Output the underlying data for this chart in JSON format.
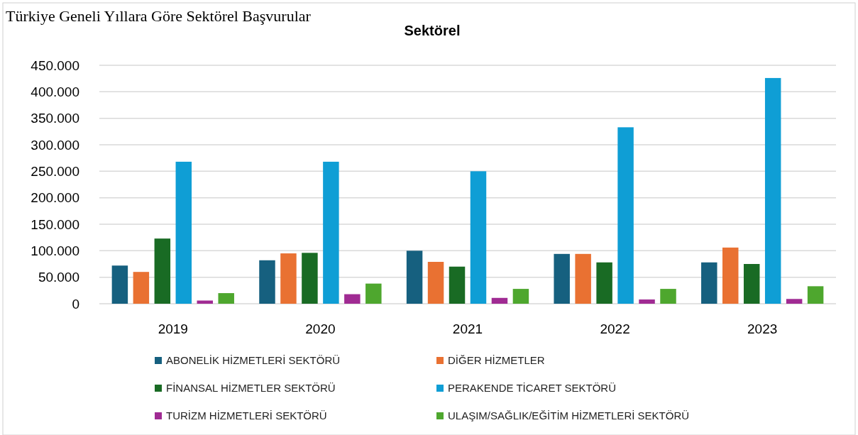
{
  "chart_data": {
    "type": "bar",
    "title": "Türkiye Geneli Yıllara Göre Sektörel Başvurular",
    "subtitle": "Sektörel",
    "categories": [
      "2019",
      "2020",
      "2021",
      "2022",
      "2023"
    ],
    "series": [
      {
        "name": "ABONELİK HİZMETLERİ SEKTÖRÜ",
        "color": "#16607f",
        "values": [
          72000,
          82000,
          100000,
          94000,
          78000
        ]
      },
      {
        "name": "DİĞER HİZMETLER",
        "color": "#e97132",
        "values": [
          60000,
          95000,
          79000,
          94000,
          106000
        ]
      },
      {
        "name": "FİNANSAL HİZMETLER SEKTÖRÜ",
        "color": "#196b24",
        "values": [
          123000,
          96000,
          70000,
          78000,
          75000
        ]
      },
      {
        "name": "PERAKENDE TİCARET SEKTÖRÜ",
        "color": "#0f9ed5",
        "values": [
          268000,
          268000,
          250000,
          333000,
          426000
        ]
      },
      {
        "name": "TURİZM HİZMETLERİ SEKTÖRÜ",
        "color": "#a02b93",
        "values": [
          6000,
          18000,
          11000,
          8000,
          9000
        ]
      },
      {
        "name": "ULAŞIM/SAĞLIK/EĞİTİM HİZMETLERİ SEKTÖRÜ",
        "color": "#4ea72e",
        "values": [
          20000,
          38000,
          28000,
          28000,
          33000
        ]
      }
    ],
    "ylim": [
      0,
      450000
    ],
    "yticks": [
      0,
      {
        "value": 50000,
        "label": "50.000"
      },
      {
        "value": 100000,
        "label": "100.000"
      },
      {
        "value": 150000,
        "label": "150.000"
      },
      {
        "value": 200000,
        "label": "200.000"
      },
      {
        "value": 250000,
        "label": "250.000"
      },
      {
        "value": 300000,
        "label": "300.000"
      },
      {
        "value": 350000,
        "label": "350.000"
      },
      {
        "value": 400000,
        "label": "400.000"
      },
      {
        "value": 450000,
        "label": "450.000"
      }
    ],
    "grid": "y",
    "legend": "bottom"
  }
}
